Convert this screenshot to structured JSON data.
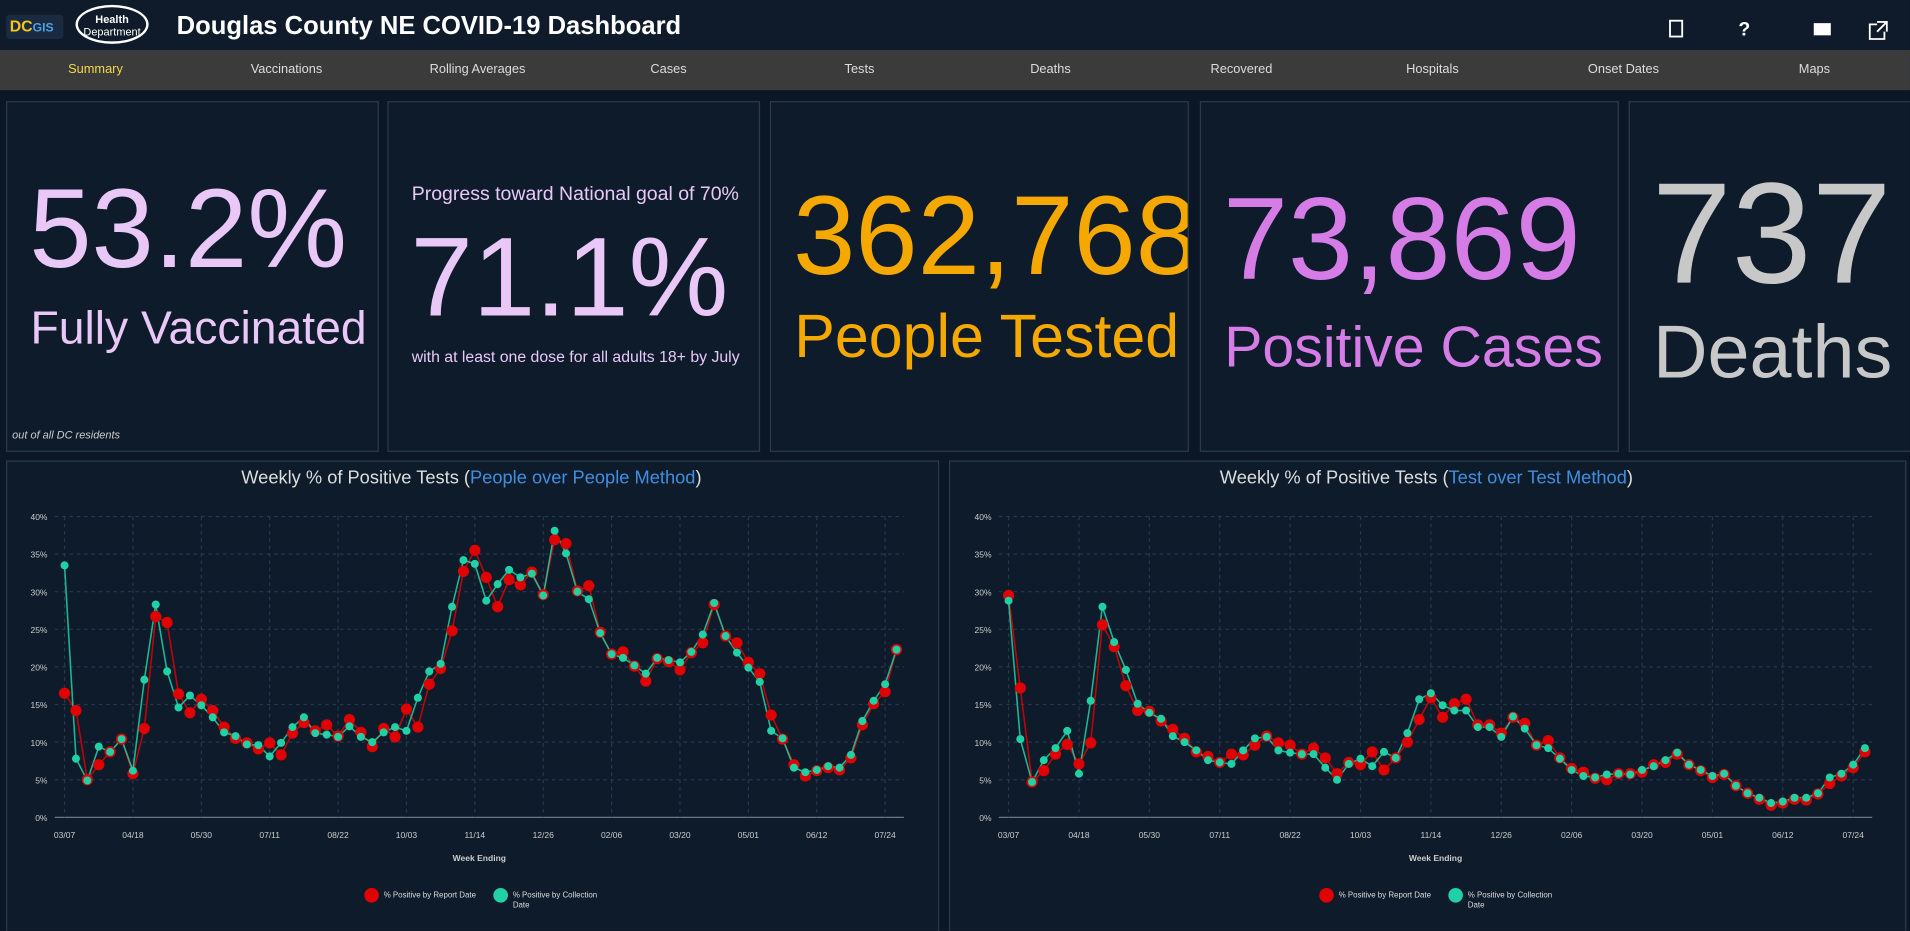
{
  "header": {
    "logo": [
      "DC",
      "GIS"
    ],
    "health_logo": [
      "Health",
      "Department"
    ],
    "title": "Douglas County NE COVID-19 Dashboard"
  },
  "nav": [
    "Summary",
    "Vaccinations",
    "Rolling Averages",
    "Cases",
    "Tests",
    "Deaths",
    "Recovered",
    "Hospitals",
    "Onset Dates",
    "Maps"
  ],
  "cards": [
    {
      "value": "53.2%",
      "label": "Fully Vaccinated",
      "note": "out of all DC residents"
    },
    {
      "heading": "Progress toward National goal of 70%",
      "value": "71.1%",
      "note": "with at least one dose for all adults 18+ by July"
    },
    {
      "value": "362,768",
      "label": "People Tested"
    },
    {
      "value": "73,869",
      "label": "Positive Cases"
    },
    {
      "value": "737",
      "label": "Deaths"
    }
  ],
  "chart_data": [
    {
      "type": "line",
      "title": "Weekly % of Positive Tests (",
      "title_link": "People over People Method",
      "title_suffix": ")",
      "x_label": "Week Ending",
      "legend": "bottom",
      "grid": true,
      "categories": [
        "03/07",
        null,
        null,
        null,
        null,
        null,
        "04/18",
        null,
        null,
        null,
        null,
        null,
        "05/30",
        null,
        null,
        null,
        null,
        null,
        "07/11",
        null,
        null,
        null,
        null,
        null,
        "08/22",
        null,
        null,
        null,
        null,
        null,
        "10/03",
        null,
        null,
        null,
        null,
        null,
        "11/14",
        null,
        null,
        null,
        null,
        null,
        "12/26",
        null,
        null,
        null,
        null,
        null,
        "02/06",
        null,
        null,
        null,
        null,
        null,
        "03/20",
        null,
        null,
        null,
        null,
        null,
        "05/01",
        null,
        null,
        null,
        null,
        null,
        "06/12",
        null,
        null,
        null,
        null,
        null,
        "07/24",
        null
      ],
      "ylim": [
        0,
        40
      ],
      "yticks": [
        {
          "value": 0,
          "label": "0%"
        },
        {
          "value": 5,
          "label": "5%"
        },
        {
          "value": 10,
          "label": "10%"
        },
        {
          "value": 15,
          "label": "15%"
        },
        {
          "value": 20,
          "label": "20%"
        },
        {
          "value": 25,
          "label": "25%"
        },
        {
          "value": 30,
          "label": "30%"
        },
        {
          "value": 35,
          "label": "35%"
        },
        {
          "value": 40,
          "label": "40%"
        }
      ],
      "series": [
        {
          "name": "% Positive by Report Date",
          "color": "#e00000",
          "values": [
            16.5,
            14.2,
            5,
            7,
            8.7,
            10.4,
            5.8,
            11.8,
            26.7,
            25.9,
            16.4,
            13.9,
            15.7,
            14.2,
            12,
            10.5,
            9.9,
            9.1,
            9.9,
            8.3,
            11.2,
            12.6,
            11.5,
            12.3,
            10.8,
            13,
            11.3,
            9.4,
            11.8,
            10.7,
            14.4,
            12,
            17.7,
            19.8,
            24.8,
            32.7,
            35.5,
            31.9,
            28,
            31.6,
            30.9,
            32.6,
            29.6,
            36.9,
            36.4,
            30.1,
            30.8,
            24.6,
            21.7,
            22,
            20.1,
            18.1,
            21.1,
            20.7,
            19.6,
            21.9,
            23.2,
            28.3,
            24.1,
            23.2,
            20.6,
            19.1,
            13.6,
            10.4,
            7,
            5.5,
            6.2,
            6.6,
            6.3,
            7.9,
            12.3,
            15.1,
            16.7,
            22.3
          ]
        },
        {
          "name": "% Positive by Collection Date",
          "color": "#1fd1a5",
          "values": [
            33.5,
            7.8,
            4.9,
            9.4,
            8.7,
            10.4,
            6.2,
            18.3,
            28.3,
            19.4,
            14.6,
            16.2,
            14.9,
            13.3,
            11.3,
            10.8,
            9.7,
            9.6,
            8.1,
            9.9,
            12,
            13.3,
            11.2,
            11,
            10.7,
            12.1,
            10.7,
            10,
            11.3,
            12,
            11.5,
            15.9,
            19.4,
            20.4,
            28,
            34.2,
            33.7,
            28.8,
            31,
            32.9,
            31.9,
            32.4,
            29.5,
            38.1,
            35.1,
            30,
            29,
            24.5,
            21.7,
            21.2,
            20.2,
            19.1,
            21.2,
            20.9,
            20.6,
            22,
            24.3,
            28.5,
            24.1,
            21.9,
            19.9,
            18,
            11.5,
            10.5,
            6.6,
            6,
            6.3,
            6.8,
            6.6,
            8.3,
            12.8,
            15.5,
            17.7,
            22.3
          ]
        }
      ]
    },
    {
      "type": "line",
      "title": "Weekly % of Positive Tests (",
      "title_link": "Test over Test Method",
      "title_suffix": ")",
      "x_label": "Week Ending",
      "legend": "bottom",
      "grid": true,
      "categories": [
        "03/07",
        null,
        null,
        null,
        null,
        null,
        "04/18",
        null,
        null,
        null,
        null,
        null,
        "05/30",
        null,
        null,
        null,
        null,
        null,
        "07/11",
        null,
        null,
        null,
        null,
        null,
        "08/22",
        null,
        null,
        null,
        null,
        null,
        "10/03",
        null,
        null,
        null,
        null,
        null,
        "11/14",
        null,
        null,
        null,
        null,
        null,
        "12/26",
        null,
        null,
        null,
        null,
        null,
        "02/06",
        null,
        null,
        null,
        null,
        null,
        "03/20",
        null,
        null,
        null,
        null,
        null,
        "05/01",
        null,
        null,
        null,
        null,
        null,
        "06/12",
        null,
        null,
        null,
        null,
        null,
        "07/24",
        null
      ],
      "ylim": [
        0,
        40
      ],
      "yticks": [
        {
          "value": 0,
          "label": "0%"
        },
        {
          "value": 5,
          "label": "5%"
        },
        {
          "value": 10,
          "label": "10%"
        },
        {
          "value": 15,
          "label": "15%"
        },
        {
          "value": 20,
          "label": "20%"
        },
        {
          "value": 25,
          "label": "25%"
        },
        {
          "value": 30,
          "label": "30%"
        },
        {
          "value": 35,
          "label": "35%"
        },
        {
          "value": 40,
          "label": "40%"
        }
      ],
      "series": [
        {
          "name": "% Positive by Report Date",
          "color": "#e00000",
          "values": [
            29.5,
            17.2,
            4.7,
            6.2,
            8.4,
            9.7,
            7.1,
            9.9,
            25.6,
            22.7,
            17.5,
            14.2,
            14.1,
            12.8,
            11.7,
            10.5,
            8.7,
            8.1,
            7.3,
            8.4,
            8.3,
            9.6,
            10.8,
            9.9,
            9.6,
            8.4,
            9.2,
            7.9,
            5.8,
            7.3,
            7,
            8.7,
            6.3,
            7.9,
            10,
            13,
            15.9,
            13.3,
            15.1,
            15.7,
            12.3,
            12.3,
            11.2,
            13.3,
            12.5,
            9.6,
            10.2,
            7.9,
            6.5,
            6,
            5.2,
            5,
            5.8,
            5.8,
            6,
            7,
            7.3,
            8.4,
            7,
            6.2,
            5.3,
            5.7,
            4.2,
            3.2,
            2.4,
            1.6,
            1.9,
            2.4,
            2.3,
            3.1,
            4.5,
            5.5,
            6.6,
            8.7
          ]
        },
        {
          "name": "% Positive by Collection Date",
          "color": "#1fd1a5",
          "values": [
            28.8,
            10.4,
            4.7,
            7.6,
            9.2,
            11.5,
            5.8,
            15.5,
            28,
            23.3,
            19.6,
            15.1,
            13.9,
            13.1,
            10.8,
            10,
            8.9,
            7.6,
            7.3,
            7.1,
            8.9,
            10.5,
            10.7,
            8.9,
            8.6,
            8.4,
            8.4,
            6.6,
            5,
            7.1,
            7.8,
            6.8,
            8.7,
            7.9,
            11.2,
            15.7,
            16.5,
            14.9,
            14.2,
            14.2,
            12,
            12,
            10.7,
            13.4,
            11.8,
            9.6,
            9.2,
            7.8,
            6.3,
            5.5,
            5.3,
            5.7,
            5.8,
            5.7,
            6.3,
            6.8,
            7.6,
            8.6,
            7,
            6.3,
            5.5,
            5.8,
            4.2,
            3.2,
            2.6,
            1.9,
            2.1,
            2.6,
            2.6,
            3.2,
            5.3,
            5.8,
            7,
            9.2
          ]
        }
      ]
    }
  ]
}
